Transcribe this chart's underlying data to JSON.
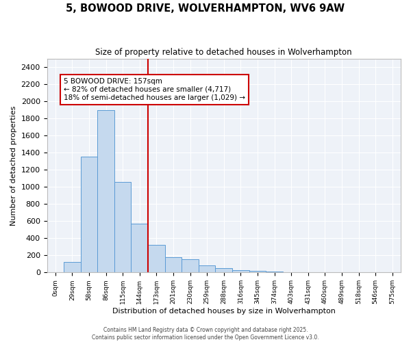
{
  "title": "5, BOWOOD DRIVE, WOLVERHAMPTON, WV6 9AW",
  "subtitle": "Size of property relative to detached houses in Wolverhampton",
  "xlabel": "Distribution of detached houses by size in Wolverhampton",
  "ylabel": "Number of detached properties",
  "bar_color": "#c5d9ee",
  "bar_edge_color": "#5b9bd5",
  "background_color": "#eef2f8",
  "grid_color": "#ffffff",
  "annotation_box_color": "#cc0000",
  "vline_color": "#cc0000",
  "vline_x": 5.5,
  "annotation_text": "5 BOWOOD DRIVE: 157sqm\n← 82% of detached houses are smaller (4,717)\n18% of semi-detached houses are larger (1,029) →",
  "bin_labels": [
    "0sqm",
    "29sqm",
    "58sqm",
    "86sqm",
    "115sqm",
    "144sqm",
    "173sqm",
    "201sqm",
    "230sqm",
    "259sqm",
    "288sqm",
    "316sqm",
    "345sqm",
    "374sqm",
    "403sqm",
    "431sqm",
    "460sqm",
    "489sqm",
    "518sqm",
    "546sqm",
    "575sqm"
  ],
  "bar_heights": [
    0,
    120,
    1350,
    1900,
    1060,
    570,
    320,
    175,
    155,
    80,
    50,
    30,
    15,
    10,
    6,
    4,
    2,
    1,
    0,
    0,
    0
  ],
  "ylim": [
    0,
    2500
  ],
  "yticks": [
    0,
    200,
    400,
    600,
    800,
    1000,
    1200,
    1400,
    1600,
    1800,
    2000,
    2200,
    2400
  ],
  "copyright_text": "Contains HM Land Registry data © Crown copyright and database right 2025.\nContains public sector information licensed under the Open Government Licence v3.0."
}
